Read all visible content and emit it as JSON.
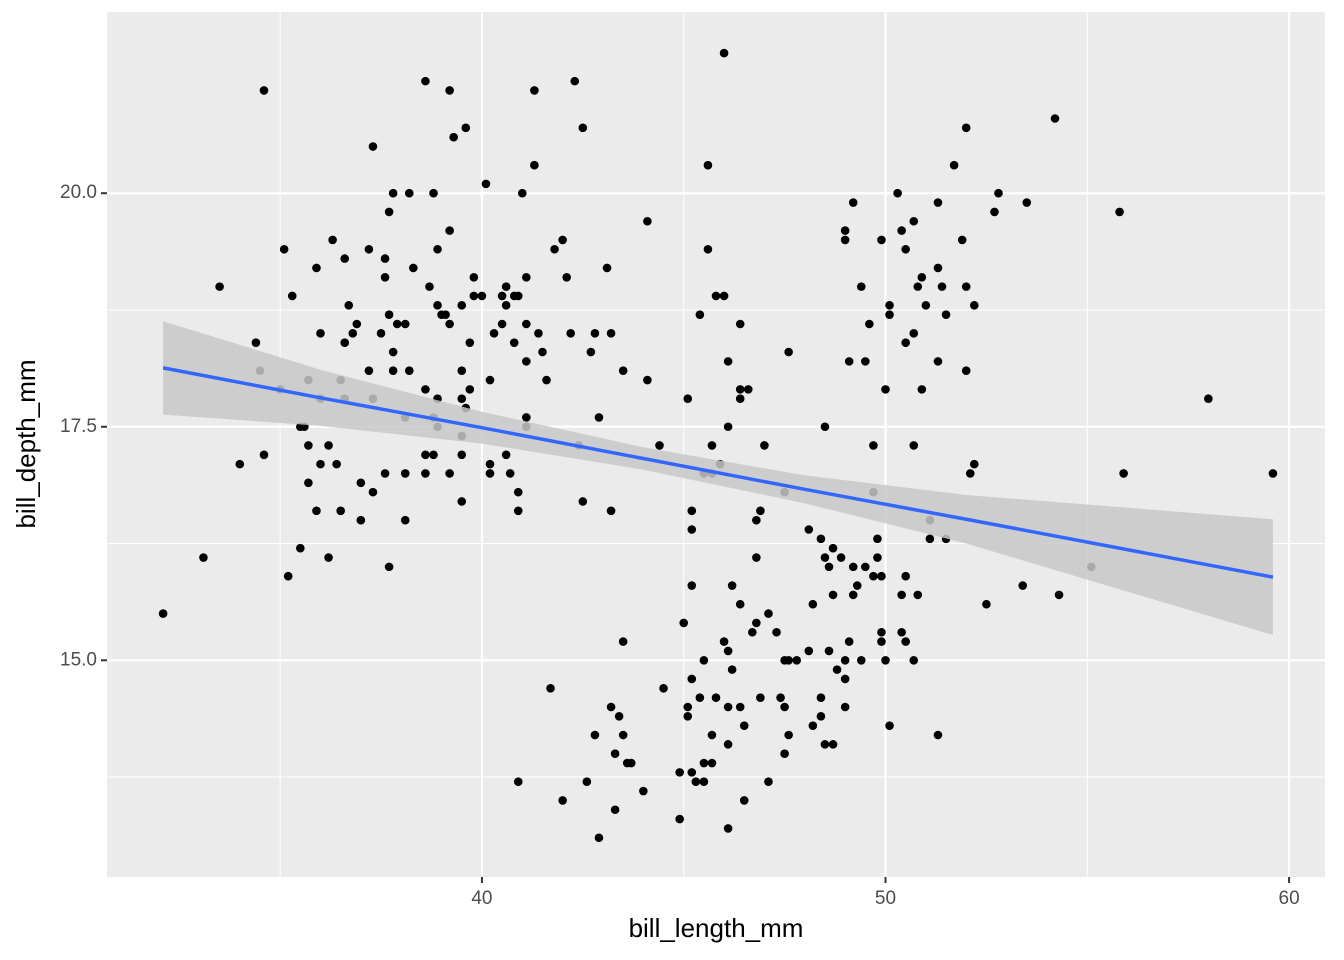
{
  "chart_data": {
    "type": "scatter",
    "x_label": "bill_length_mm",
    "y_label": "bill_depth_mm",
    "xlim": [
      30.71,
      60.89
    ],
    "ylim": [
      12.68,
      21.94
    ],
    "xticks": [
      40,
      50,
      60
    ],
    "yticks": [
      {
        "value": 15,
        "label": "15.0"
      },
      {
        "value": 17.5,
        "label": "17.5"
      },
      {
        "value": 20,
        "label": "20.0"
      }
    ],
    "xminor": [
      35,
      45,
      55
    ],
    "yminor": [
      13.75,
      16.25,
      18.75
    ],
    "grid": true,
    "series": [
      {
        "color": "#000000",
        "x": [
          32.1,
          33.1,
          33.5,
          34.0,
          34.4,
          34.5,
          34.6,
          34.6,
          35.0,
          35.1,
          35.2,
          35.3,
          35.5,
          35.5,
          35.6,
          35.7,
          35.7,
          35.7,
          35.9,
          35.9,
          36.0,
          36.0,
          36.0,
          36.2,
          36.2,
          36.3,
          36.4,
          36.5,
          36.5,
          36.6,
          36.6,
          36.6,
          36.7,
          36.8,
          36.9,
          37.0,
          37.0,
          37.2,
          37.2,
          37.3,
          37.3,
          37.3,
          37.5,
          37.6,
          37.6,
          37.6,
          37.7,
          37.7,
          37.7,
          37.8,
          37.8,
          37.8,
          37.9,
          38.1,
          38.1,
          38.1,
          38.1,
          38.2,
          38.2,
          38.3,
          38.6,
          38.6,
          38.6,
          38.6,
          38.7,
          38.8,
          38.8,
          38.8,
          38.9,
          38.9,
          38.9,
          38.9,
          39.0,
          39.1,
          39.2,
          39.2,
          39.2,
          39.2,
          39.3,
          39.5,
          39.5,
          39.5,
          39.5,
          39.5,
          39.5,
          39.6,
          39.6,
          39.7,
          39.7,
          39.8,
          39.8,
          40.0,
          40.1,
          40.2,
          40.2,
          40.2,
          40.3,
          40.5,
          40.5,
          40.6,
          40.6,
          40.6,
          40.7,
          40.8,
          40.8,
          40.9,
          40.9,
          40.9,
          40.9,
          41.0,
          41.1,
          41.1,
          41.1,
          41.1,
          41.1,
          41.3,
          41.3,
          41.4,
          41.5,
          41.6,
          41.7,
          41.8,
          42.0,
          42.0,
          42.1,
          42.2,
          42.3,
          42.4,
          42.5,
          42.5,
          42.6,
          42.7,
          42.8,
          42.8,
          42.9,
          42.9,
          43.1,
          43.2,
          43.2,
          43.2,
          43.3,
          43.3,
          43.4,
          43.5,
          43.5,
          43.5,
          43.6,
          43.7,
          44.0,
          44.1,
          44.1,
          44.4,
          44.5,
          44.9,
          44.9,
          45.0,
          45.1,
          45.1,
          45.1,
          45.2,
          45.2,
          45.2,
          45.2,
          45.2,
          45.3,
          45.4,
          45.4,
          45.5,
          45.5,
          45.5,
          45.5,
          45.6,
          45.6,
          45.7,
          45.7,
          45.7,
          45.7,
          45.8,
          45.8,
          45.9,
          46.0,
          46.0,
          46.0,
          46.1,
          46.1,
          46.1,
          46.1,
          46.1,
          46.1,
          46.2,
          46.2,
          46.4,
          46.4,
          46.4,
          46.4,
          46.4,
          46.5,
          46.5,
          46.6,
          46.7,
          46.8,
          46.8,
          46.8,
          46.9,
          46.9,
          47.0,
          47.1,
          47.1,
          47.3,
          47.4,
          47.5,
          47.5,
          47.5,
          47.5,
          47.6,
          47.6,
          47.6,
          47.8,
          48.1,
          48.1,
          48.2,
          48.2,
          48.4,
          48.4,
          48.4,
          48.5,
          48.5,
          48.5,
          48.6,
          48.6,
          48.7,
          48.7,
          48.7,
          48.8,
          48.9,
          49.0,
          49.0,
          49.0,
          49.0,
          49.0,
          49.1,
          49.1,
          49.2,
          49.2,
          49.2,
          49.3,
          49.4,
          49.4,
          49.5,
          49.5,
          49.6,
          49.7,
          49.7,
          49.7,
          49.8,
          49.8,
          49.9,
          49.9,
          49.9,
          49.9,
          50.0,
          50.0,
          50.1,
          50.1,
          50.1,
          50.3,
          50.4,
          50.4,
          50.4,
          50.5,
          50.5,
          50.5,
          50.5,
          50.7,
          50.7,
          50.7,
          50.7,
          50.8,
          50.8,
          50.9,
          50.9,
          51.0,
          51.1,
          51.1,
          51.3,
          51.3,
          51.3,
          51.3,
          51.4,
          51.5,
          51.5,
          51.7,
          51.9,
          52.0,
          52.0,
          52.0,
          52.1,
          52.2,
          52.2,
          52.5,
          52.7,
          52.8,
          53.4,
          53.5,
          54.2,
          54.3,
          55.1,
          55.8,
          55.9,
          58.0,
          59.6
        ],
        "values": [
          15.5,
          16.1,
          19.0,
          17.1,
          18.4,
          18.1,
          21.1,
          17.2,
          17.9,
          19.4,
          15.9,
          18.9,
          16.2,
          17.5,
          17.5,
          17.3,
          16.9,
          18.0,
          19.2,
          16.6,
          18.5,
          17.8,
          17.1,
          16.1,
          17.3,
          19.5,
          17.1,
          18.0,
          16.6,
          18.4,
          17.8,
          19.3,
          18.8,
          18.5,
          18.6,
          16.9,
          16.5,
          19.4,
          18.1,
          20.5,
          16.8,
          17.8,
          18.5,
          19.3,
          19.1,
          17.0,
          19.8,
          18.7,
          16.0,
          18.3,
          20.0,
          18.1,
          18.6,
          18.6,
          16.5,
          17.6,
          17.0,
          18.1,
          20.0,
          19.2,
          17.9,
          17.0,
          17.2,
          21.2,
          19.0,
          20.0,
          17.2,
          17.6,
          18.8,
          17.8,
          19.4,
          17.5,
          18.7,
          18.7,
          21.1,
          19.6,
          18.6,
          17.0,
          20.6,
          16.7,
          17.4,
          17.8,
          18.1,
          17.2,
          18.8,
          20.7,
          17.7,
          18.4,
          17.9,
          18.9,
          19.1,
          18.9,
          20.1,
          17.1,
          17.0,
          18.0,
          18.5,
          18.9,
          18.6,
          18.8,
          19.0,
          17.2,
          17.0,
          18.9,
          18.4,
          16.8,
          16.6,
          13.7,
          18.9,
          20.0,
          19.1,
          18.6,
          18.2,
          17.6,
          17.5,
          21.1,
          20.3,
          18.5,
          18.3,
          18.0,
          14.7,
          19.4,
          13.5,
          19.5,
          19.1,
          18.5,
          21.2,
          17.3,
          20.7,
          16.7,
          13.7,
          18.3,
          14.2,
          18.5,
          17.6,
          13.1,
          19.2,
          18.5,
          16.6,
          14.5,
          13.4,
          14.0,
          14.4,
          18.1,
          15.2,
          14.2,
          13.9,
          13.9,
          13.6,
          18.0,
          19.7,
          17.3,
          14.7,
          13.3,
          13.8,
          15.4,
          14.5,
          14.4,
          17.8,
          16.6,
          16.4,
          15.8,
          14.8,
          13.8,
          13.7,
          18.7,
          14.6,
          15.0,
          17.0,
          13.7,
          13.9,
          19.4,
          20.3,
          17.3,
          13.9,
          17.0,
          14.2,
          14.6,
          18.9,
          17.1,
          21.5,
          18.9,
          15.2,
          18.2,
          13.2,
          15.1,
          14.5,
          14.1,
          17.5,
          14.9,
          15.8,
          18.6,
          17.8,
          15.6,
          14.5,
          17.9,
          14.3,
          13.5,
          17.9,
          15.3,
          16.5,
          16.1,
          15.4,
          16.6,
          14.6,
          17.3,
          15.5,
          13.7,
          15.3,
          14.6,
          16.8,
          15.0,
          14.0,
          14.5,
          14.2,
          18.3,
          15.0,
          15.0,
          16.4,
          15.1,
          14.3,
          15.6,
          16.3,
          14.6,
          14.4,
          17.5,
          14.1,
          16.1,
          16.0,
          15.1,
          15.7,
          14.1,
          16.2,
          14.9,
          16.1,
          19.6,
          19.5,
          15.0,
          14.8,
          14.5,
          15.2,
          18.2,
          15.7,
          19.9,
          16.0,
          15.8,
          19.0,
          15.0,
          18.2,
          16.0,
          18.6,
          16.8,
          17.3,
          15.9,
          16.1,
          16.3,
          15.9,
          19.5,
          15.3,
          15.2,
          17.9,
          15.0,
          18.8,
          18.7,
          14.3,
          20.0,
          15.7,
          15.3,
          19.6,
          18.4,
          15.9,
          15.2,
          19.4,
          19.7,
          15.0,
          17.3,
          18.5,
          15.7,
          19.0,
          19.1,
          17.9,
          18.8,
          16.5,
          16.3,
          14.2,
          18.2,
          19.2,
          19.9,
          19.0,
          16.3,
          18.7,
          20.3,
          19.5,
          20.7,
          19.0,
          18.1,
          17.0,
          17.1,
          18.8,
          15.6,
          19.8,
          20.0,
          15.8,
          19.9,
          20.8,
          15.7,
          16.0,
          19.8,
          17.0,
          17.8,
          17.0
        ]
      }
    ],
    "fit": {
      "color": "#3366ff",
      "band_color": "#c8c8c8",
      "x": [
        32.1,
        36,
        40,
        44,
        48,
        52,
        59.6
      ],
      "values": [
        18.13,
        17.81,
        17.49,
        17.16,
        16.83,
        16.51,
        15.89
      ],
      "lower": [
        17.63,
        17.51,
        17.32,
        17.04,
        16.68,
        16.25,
        15.27
      ],
      "upper": [
        18.63,
        18.11,
        17.66,
        17.28,
        16.98,
        16.77,
        16.51
      ]
    }
  }
}
